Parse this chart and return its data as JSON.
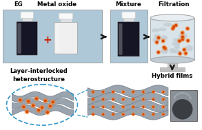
{
  "bg_color": "#ffffff",
  "top_labels": [
    "EG",
    "Metal oxide",
    "Mixture",
    "Filtration"
  ],
  "bottom_labels": [
    "Layer-interlocked\nheterostructure",
    "Hybrid films"
  ],
  "arrow_color": "#1a1a1a",
  "photo_bg": "#aec8d8",
  "bottle_body_dark": "#151525",
  "bottle_body_white": "#f0f0f0",
  "bottle_cap": "#ffffff",
  "plus_color": "#cc2200",
  "filtration_bowl_color": "#dde8ee",
  "filtration_liquid_color": "#ccd8e0",
  "particle_orange": "#cc4400",
  "particle_glow": "#ff7722",
  "graphene_color": "#9aa4ae",
  "graphene_edge": "#7a8490",
  "dashed_ellipse_color": "#3399cc",
  "film_photo_color": "#5a6268",
  "film_dark": "#3a3d42"
}
